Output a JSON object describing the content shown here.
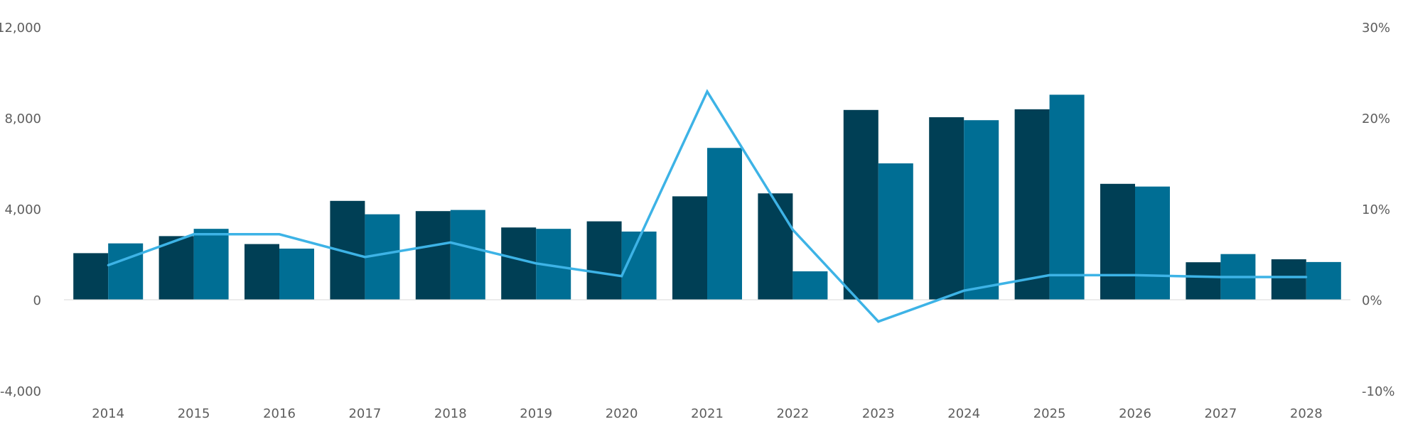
{
  "chart_data": {
    "type": "bar",
    "categories": [
      "2014",
      "2015",
      "2016",
      "2017",
      "2018",
      "2019",
      "2020",
      "2021",
      "2022",
      "2023",
      "2024",
      "2025",
      "2026",
      "2027",
      "2028"
    ],
    "series": [
      {
        "type": "bar",
        "axis": "left",
        "color": "#003f55",
        "values": [
          2050,
          2800,
          2450,
          4350,
          3900,
          3180,
          3450,
          4550,
          4680,
          8350,
          8030,
          8380,
          5100,
          1650,
          1780
        ]
      },
      {
        "type": "bar",
        "axis": "left",
        "color": "#006e94",
        "values": [
          2480,
          3120,
          2250,
          3760,
          3950,
          3120,
          3000,
          6680,
          1250,
          6000,
          7900,
          9020,
          4980,
          2010,
          1660
        ]
      },
      {
        "type": "line",
        "axis": "right",
        "color": "#3db3e6",
        "values": [
          3.8,
          7.2,
          7.2,
          4.7,
          6.3,
          4.0,
          2.6,
          22.9,
          7.7,
          -2.4,
          1.0,
          2.7,
          2.7,
          2.5,
          2.5
        ]
      }
    ],
    "y_left": {
      "ylim": [
        -4000,
        12000
      ],
      "ticks": [
        12000,
        8000,
        4000,
        0,
        -4000
      ],
      "tick_labels": [
        "12,000",
        "8,000",
        "4,000",
        "0",
        "-4,000"
      ]
    },
    "y_right": {
      "ylim": [
        -10,
        30
      ],
      "ticks": [
        30,
        20,
        10,
        0,
        -10
      ],
      "tick_labels": [
        "30%",
        "20%",
        "10%",
        "0%",
        "-10%"
      ]
    },
    "title": "",
    "xlabel": "",
    "ylabel": "",
    "legend": "none",
    "grid": false
  }
}
